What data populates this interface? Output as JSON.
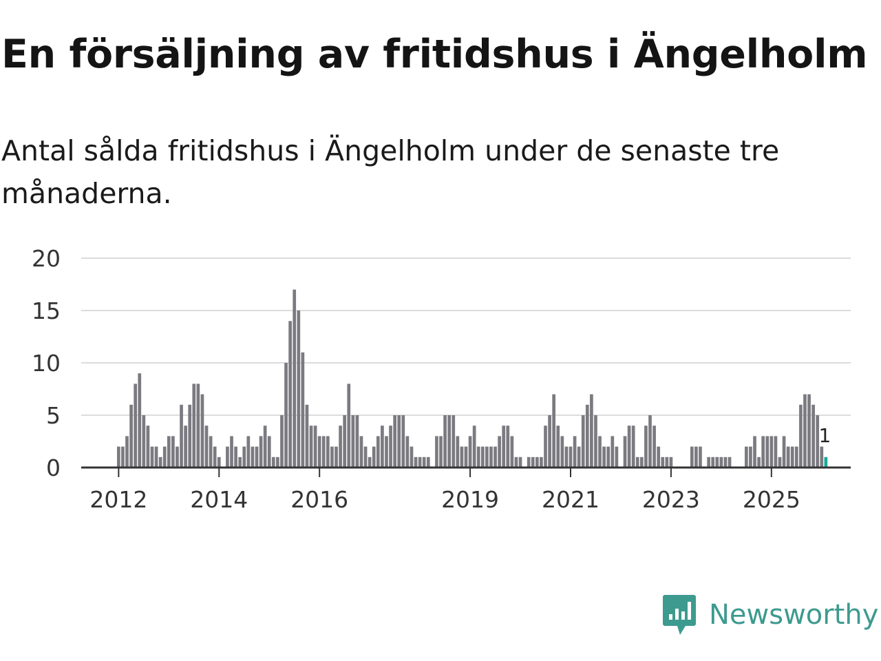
{
  "title": "En försäljning av fritidshus i Ängelholm",
  "subtitle": "Antal sålda fritidshus i Ängelholm under de senaste tre månaderna.",
  "brand": {
    "name": "Newsworthy",
    "color": "#3d9a8f",
    "icon": "newsworthy-logo-icon"
  },
  "colors": {
    "bar": "#7a7a80",
    "highlight": "#1aa99c",
    "grid": "#dcdcdc",
    "axis": "#333333"
  },
  "chart_data": {
    "type": "bar",
    "title": "En försäljning av fritidshus i Ängelholm",
    "xlabel": "",
    "ylabel": "",
    "ylim": [
      0,
      20
    ],
    "yticks": [
      0,
      5,
      10,
      15,
      20
    ],
    "grid": true,
    "start": "2012-01",
    "xticks": [
      {
        "label": "2012",
        "index": 0
      },
      {
        "label": "2014",
        "index": 24
      },
      {
        "label": "2016",
        "index": 48
      },
      {
        "label": "2019",
        "index": 84
      },
      {
        "label": "2021",
        "index": 108
      },
      {
        "label": "2023",
        "index": 132
      },
      {
        "label": "2025",
        "index": 156
      }
    ],
    "values": [
      2,
      2,
      3,
      6,
      8,
      9,
      5,
      4,
      2,
      2,
      1,
      2,
      3,
      3,
      2,
      6,
      4,
      6,
      8,
      8,
      7,
      4,
      3,
      2,
      1,
      0,
      2,
      3,
      2,
      1,
      2,
      3,
      2,
      2,
      3,
      4,
      3,
      1,
      1,
      5,
      10,
      14,
      17,
      15,
      11,
      6,
      4,
      4,
      3,
      3,
      3,
      2,
      2,
      4,
      5,
      8,
      5,
      5,
      3,
      2,
      1,
      2,
      3,
      4,
      3,
      4,
      5,
      5,
      5,
      3,
      2,
      1,
      1,
      1,
      1,
      0,
      3,
      3,
      5,
      5,
      5,
      3,
      2,
      2,
      3,
      4,
      2,
      2,
      2,
      2,
      2,
      3,
      4,
      4,
      3,
      1,
      1,
      0,
      1,
      1,
      1,
      1,
      4,
      5,
      7,
      4,
      3,
      2,
      2,
      3,
      2,
      5,
      6,
      7,
      5,
      3,
      2,
      2,
      3,
      2,
      0,
      3,
      4,
      4,
      1,
      1,
      4,
      5,
      4,
      2,
      1,
      1,
      1,
      0,
      0,
      0,
      0,
      2,
      2,
      2,
      0,
      1,
      1,
      1,
      1,
      1,
      1,
      0,
      0,
      0,
      2,
      2,
      3,
      1,
      3,
      3,
      3,
      3,
      1,
      3,
      2,
      2,
      2,
      6,
      7,
      7,
      6,
      5,
      2,
      1
    ],
    "highlight_last": true,
    "last_value_label": "1"
  }
}
